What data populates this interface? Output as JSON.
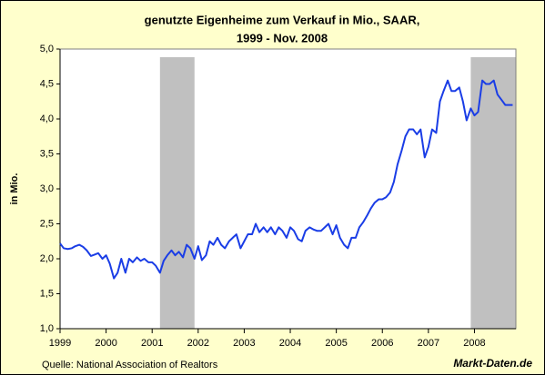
{
  "chart_data": {
    "type": "line",
    "title": "genutzte Eigenheime zum Verkauf in Mio., SAAR,",
    "subtitle": "1999 - Nov. 2008",
    "y_label": "in Mio.",
    "source": "Quelle: National Association of Realtors",
    "brand": "Markt-Daten.de",
    "xlim": [
      1999,
      2008.9
    ],
    "xticks": [
      1999,
      2000,
      2001,
      2002,
      2003,
      2004,
      2005,
      2006,
      2007,
      2008
    ],
    "ylim": [
      1,
      5
    ],
    "yticks": [
      {
        "value": 1,
        "label": "1,0"
      },
      {
        "value": 1.5,
        "label": "1,5"
      },
      {
        "value": 2,
        "label": "2,0"
      },
      {
        "value": 2.5,
        "label": "2,5"
      },
      {
        "value": 3,
        "label": "3,0"
      },
      {
        "value": 3.5,
        "label": "3,5"
      },
      {
        "value": 4,
        "label": "4,0"
      },
      {
        "value": 4.5,
        "label": "4,5"
      },
      {
        "value": 5,
        "label": "5,0"
      }
    ],
    "shaded_periods": [
      [
        2001.17,
        2001.92
      ],
      [
        2007.92,
        2008.9
      ]
    ],
    "shade_color": "#c0c0c0",
    "x": [
      1999.0,
      1999.08,
      1999.17,
      1999.25,
      1999.33,
      1999.42,
      1999.5,
      1999.58,
      1999.67,
      1999.75,
      1999.83,
      1999.92,
      2000.0,
      2000.08,
      2000.17,
      2000.25,
      2000.33,
      2000.42,
      2000.5,
      2000.58,
      2000.67,
      2000.75,
      2000.83,
      2000.92,
      2001.0,
      2001.08,
      2001.17,
      2001.25,
      2001.33,
      2001.42,
      2001.5,
      2001.58,
      2001.67,
      2001.75,
      2001.83,
      2001.92,
      2002.0,
      2002.08,
      2002.17,
      2002.25,
      2002.33,
      2002.42,
      2002.5,
      2002.58,
      2002.67,
      2002.75,
      2002.83,
      2002.92,
      2003.0,
      2003.08,
      2003.17,
      2003.25,
      2003.33,
      2003.42,
      2003.5,
      2003.58,
      2003.67,
      2003.75,
      2003.83,
      2003.92,
      2004.0,
      2004.08,
      2004.17,
      2004.25,
      2004.33,
      2004.42,
      2004.5,
      2004.58,
      2004.67,
      2004.75,
      2004.83,
      2004.92,
      2005.0,
      2005.08,
      2005.17,
      2005.25,
      2005.33,
      2005.42,
      2005.5,
      2005.58,
      2005.67,
      2005.75,
      2005.83,
      2005.92,
      2006.0,
      2006.08,
      2006.17,
      2006.25,
      2006.33,
      2006.42,
      2006.5,
      2006.58,
      2006.67,
      2006.75,
      2006.83,
      2006.92,
      2007.0,
      2007.08,
      2007.17,
      2007.25,
      2007.33,
      2007.42,
      2007.5,
      2007.58,
      2007.67,
      2007.75,
      2007.83,
      2007.92,
      2008.0,
      2008.08,
      2008.17,
      2008.25,
      2008.33,
      2008.42,
      2008.5,
      2008.58,
      2008.67,
      2008.75,
      2008.83
    ],
    "series": [
      {
        "name": "Eigenheime zum Verkauf",
        "color": "#1a3de6",
        "values": [
          2.22,
          2.15,
          2.14,
          2.15,
          2.18,
          2.2,
          2.17,
          2.12,
          2.04,
          2.06,
          2.08,
          2.0,
          2.05,
          1.93,
          1.72,
          1.8,
          2.0,
          1.8,
          2.0,
          1.95,
          2.02,
          1.97,
          2.0,
          1.95,
          1.95,
          1.9,
          1.8,
          1.97,
          2.05,
          2.12,
          2.05,
          2.1,
          2.02,
          2.2,
          2.15,
          2.0,
          2.18,
          1.98,
          2.05,
          2.25,
          2.2,
          2.3,
          2.2,
          2.15,
          2.25,
          2.3,
          2.35,
          2.15,
          2.25,
          2.35,
          2.35,
          2.5,
          2.38,
          2.45,
          2.38,
          2.45,
          2.35,
          2.45,
          2.4,
          2.3,
          2.45,
          2.4,
          2.28,
          2.25,
          2.4,
          2.45,
          2.42,
          2.4,
          2.4,
          2.45,
          2.5,
          2.35,
          2.48,
          2.3,
          2.2,
          2.15,
          2.3,
          2.3,
          2.45,
          2.52,
          2.62,
          2.72,
          2.8,
          2.85,
          2.85,
          2.88,
          2.95,
          3.1,
          3.35,
          3.55,
          3.75,
          3.85,
          3.85,
          3.78,
          3.85,
          3.45,
          3.6,
          3.85,
          3.8,
          4.25,
          4.4,
          4.55,
          4.4,
          4.4,
          4.45,
          4.25,
          3.98,
          4.15,
          4.05,
          4.1,
          4.55,
          4.5,
          4.5,
          4.55,
          4.35,
          4.28,
          4.2,
          4.2,
          4.2
        ]
      }
    ]
  }
}
